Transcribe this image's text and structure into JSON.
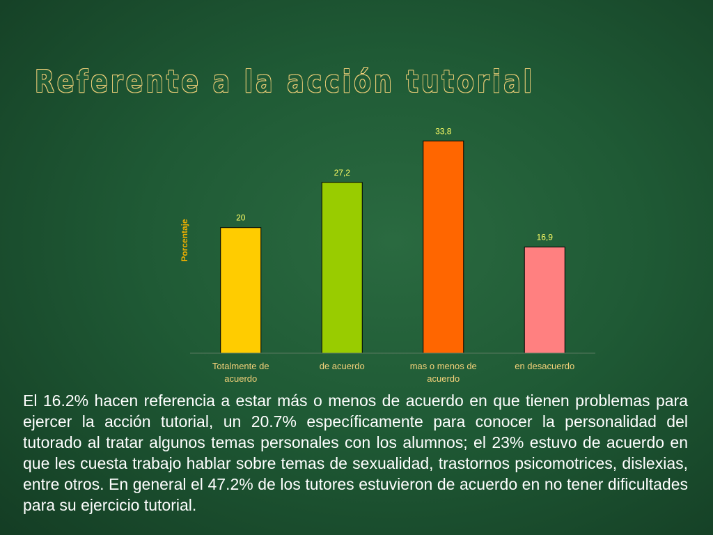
{
  "slide": {
    "title": "Referente a la acción tutorial",
    "paragraph": "El 16.2% hacen referencia a estar más o menos de acuerdo en que tienen problemas para ejercer la acción tutorial, un 20.7% específicamente para conocer la personalidad del tutorado al tratar algunos temas personales con los alumnos; el 23% estuvo de acuerdo en que les cuesta trabajo hablar sobre temas de sexualidad, trastornos psicomotrices, dislexias, entre otros. En general el 47.2% de los tutores estuvieron de acuerdo en no tener dificultades para su ejercicio tutorial."
  },
  "chart_data": {
    "type": "bar",
    "title": "",
    "xlabel": "",
    "ylabel": "Porcentaje",
    "categories": [
      [
        "Totalmente de",
        "acuerdo"
      ],
      [
        "de acuerdo"
      ],
      [
        "mas o menos de",
        "acuerdo"
      ],
      [
        "en desacuerdo"
      ]
    ],
    "values": [
      20,
      27.2,
      33.8,
      16.9
    ],
    "value_labels": [
      "20",
      "27,2",
      "33,8",
      "16,9"
    ],
    "colors": [
      "#ffcc00",
      "#99cc00",
      "#ff6600",
      "#ff8080"
    ],
    "ylim": [
      0,
      36.5
    ],
    "grid": false,
    "legend": "none"
  }
}
